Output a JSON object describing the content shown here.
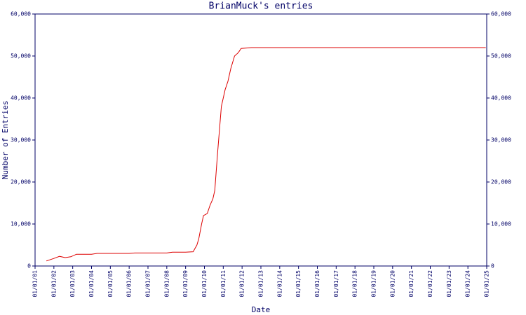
{
  "chart_data": {
    "type": "line",
    "title": "BrianMuck's entries",
    "x_label": "Date",
    "y_label": "Number of Entries",
    "xlim": [
      2001,
      2025
    ],
    "xticks": [
      {
        "value": 2001,
        "label": "01/01/01"
      },
      {
        "value": 2002,
        "label": "01/01/02"
      },
      {
        "value": 2003,
        "label": "01/01/03"
      },
      {
        "value": 2004,
        "label": "01/01/04"
      },
      {
        "value": 2005,
        "label": "01/01/05"
      },
      {
        "value": 2006,
        "label": "01/01/06"
      },
      {
        "value": 2007,
        "label": "01/01/07"
      },
      {
        "value": 2008,
        "label": "01/01/08"
      },
      {
        "value": 2009,
        "label": "01/01/09"
      },
      {
        "value": 2010,
        "label": "01/01/10"
      },
      {
        "value": 2011,
        "label": "01/01/11"
      },
      {
        "value": 2012,
        "label": "01/01/12"
      },
      {
        "value": 2013,
        "label": "01/01/13"
      },
      {
        "value": 2014,
        "label": "01/01/14"
      },
      {
        "value": 2015,
        "label": "01/01/15"
      },
      {
        "value": 2016,
        "label": "01/01/16"
      },
      {
        "value": 2017,
        "label": "01/01/17"
      },
      {
        "value": 2018,
        "label": "01/01/18"
      },
      {
        "value": 2019,
        "label": "01/01/19"
      },
      {
        "value": 2020,
        "label": "01/01/20"
      },
      {
        "value": 2021,
        "label": "01/01/21"
      },
      {
        "value": 2022,
        "label": "01/01/22"
      },
      {
        "value": 2023,
        "label": "01/01/23"
      },
      {
        "value": 2024,
        "label": "01/01/24"
      },
      {
        "value": 2025,
        "label": "01/01/25"
      }
    ],
    "ylim": [
      0,
      60000
    ],
    "yticks": [
      0,
      {
        "value": 10000,
        "label": "10,000"
      },
      {
        "value": 20000,
        "label": "20,000"
      },
      {
        "value": 30000,
        "label": "30,000"
      },
      {
        "value": 40000,
        "label": "40,000"
      },
      {
        "value": 50000,
        "label": "50,000"
      },
      {
        "value": 60000,
        "label": "60,000"
      }
    ],
    "color": "#dd0000",
    "x": [
      2001.6,
      2002.0,
      2002.3,
      2002.6,
      2002.9,
      2003.2,
      2004.0,
      2004.3,
      2005.0,
      2006.0,
      2006.3,
      2007.0,
      2008.0,
      2008.3,
      2009.0,
      2009.4,
      2009.6,
      2009.7,
      2009.85,
      2009.95,
      2010.15,
      2010.3,
      2010.45,
      2010.55,
      2010.7,
      2010.9,
      2011.1,
      2011.25,
      2011.4,
      2011.6,
      2011.8,
      2011.95,
      2012.5,
      2024.95
    ],
    "values": [
      1200,
      1800,
      2300,
      2000,
      2200,
      2800,
      2800,
      3000,
      3000,
      3000,
      3100,
      3100,
      3100,
      3300,
      3300,
      3400,
      5000,
      6500,
      10000,
      12000,
      12500,
      14500,
      16000,
      18000,
      27000,
      38000,
      42000,
      44000,
      47000,
      50000,
      50800,
      51800,
      52000,
      52000
    ]
  }
}
